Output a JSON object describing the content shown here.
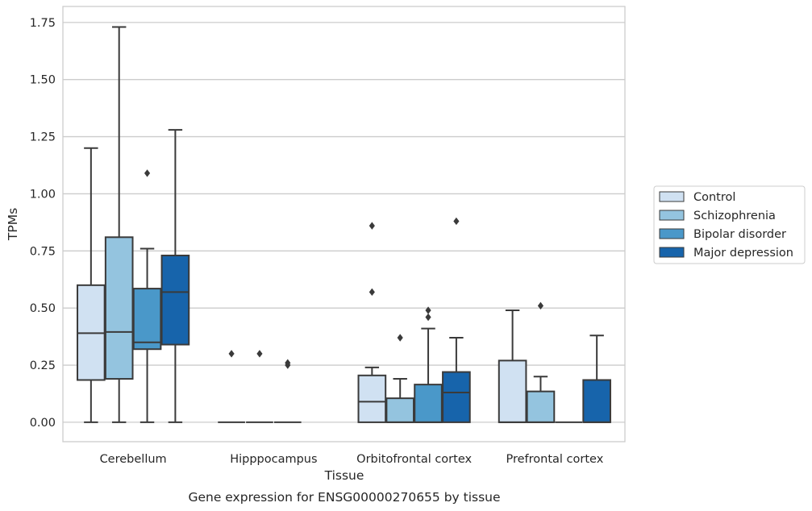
{
  "chart_data": {
    "type": "box",
    "caption": "Gene expression for ENSG00000270655 by tissue",
    "xlabel": "Tissue",
    "ylabel": "TPMs",
    "ylim": [
      -0.085,
      1.82
    ],
    "yticks": [
      0.0,
      0.25,
      0.5,
      0.75,
      1.0,
      1.25,
      1.5,
      1.75
    ],
    "ytick_labels": [
      "0.00",
      "0.25",
      "0.50",
      "0.75",
      "1.00",
      "1.25",
      "1.50",
      "1.75"
    ],
    "grid": "horizontal",
    "legend_position": "right",
    "categories": [
      "Cerebellum",
      "Hipppocampus",
      "Orbitofrontal cortex",
      "Prefrontal cortex"
    ],
    "series": [
      {
        "name": "Control",
        "color": "#d0e1f2",
        "boxes": [
          {
            "whislo": 0.0,
            "q1": 0.185,
            "med": 0.39,
            "q3": 0.6,
            "whishi": 1.2,
            "fliers": []
          },
          {
            "whislo": 0.0,
            "q1": 0.0,
            "med": 0.0,
            "q3": 0.0,
            "whishi": 0.0,
            "fliers": [
              0.3
            ]
          },
          {
            "whislo": 0.0,
            "q1": 0.0,
            "med": 0.09,
            "q3": 0.205,
            "whishi": 0.24,
            "fliers": [
              0.57,
              0.86
            ]
          },
          {
            "whislo": 0.0,
            "q1": 0.0,
            "med": 0.0,
            "q3": 0.27,
            "whishi": 0.49,
            "fliers": []
          }
        ]
      },
      {
        "name": "Schizophrenia",
        "color": "#94c4df",
        "boxes": [
          {
            "whislo": 0.0,
            "q1": 0.19,
            "med": 0.395,
            "q3": 0.81,
            "whishi": 1.73,
            "fliers": []
          },
          {
            "whislo": 0.0,
            "q1": 0.0,
            "med": 0.0,
            "q3": 0.0,
            "whishi": 0.0,
            "fliers": [
              0.3
            ]
          },
          {
            "whislo": 0.0,
            "q1": 0.0,
            "med": 0.0,
            "q3": 0.105,
            "whishi": 0.19,
            "fliers": [
              0.37
            ]
          },
          {
            "whislo": 0.0,
            "q1": 0.0,
            "med": 0.0,
            "q3": 0.135,
            "whishi": 0.2,
            "fliers": [
              0.51
            ]
          }
        ]
      },
      {
        "name": "Bipolar disorder",
        "color": "#4a98c9",
        "boxes": [
          {
            "whislo": 0.0,
            "q1": 0.32,
            "med": 0.35,
            "q3": 0.585,
            "whishi": 0.76,
            "fliers": [
              1.09
            ]
          },
          {
            "whislo": 0.0,
            "q1": 0.0,
            "med": 0.0,
            "q3": 0.0,
            "whishi": 0.0,
            "fliers": [
              0.25,
              0.26
            ]
          },
          {
            "whislo": 0.0,
            "q1": 0.0,
            "med": 0.0,
            "q3": 0.165,
            "whishi": 0.41,
            "fliers": [
              0.46,
              0.49
            ]
          },
          {
            "whislo": 0.0,
            "q1": 0.0,
            "med": 0.0,
            "q3": 0.0,
            "whishi": 0.0,
            "fliers": []
          }
        ]
      },
      {
        "name": "Major depression",
        "color": "#1764ab",
        "boxes": [
          {
            "whislo": 0.0,
            "q1": 0.34,
            "med": 0.57,
            "q3": 0.73,
            "whishi": 1.28,
            "fliers": []
          },
          null,
          {
            "whislo": 0.0,
            "q1": 0.0,
            "med": 0.13,
            "q3": 0.22,
            "whishi": 0.37,
            "fliers": [
              0.88
            ]
          },
          {
            "whislo": 0.0,
            "q1": 0.0,
            "med": 0.0,
            "q3": 0.185,
            "whishi": 0.38,
            "fliers": []
          }
        ]
      }
    ]
  }
}
